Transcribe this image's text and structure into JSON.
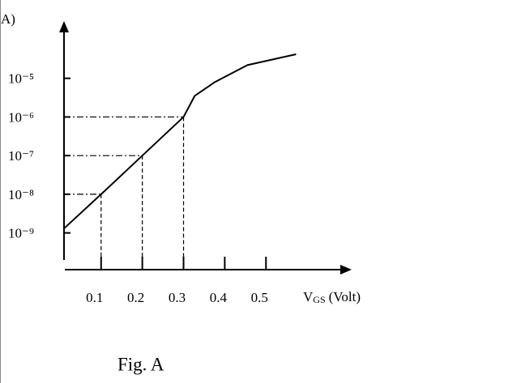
{
  "chart_data": {
    "type": "line",
    "y_label": "A)",
    "x_label": {
      "main": "V",
      "sub": "GS",
      "unit": "(Volt)"
    },
    "caption": "Fig. A",
    "log_y": true,
    "color": "#000000",
    "x": [
      0.01,
      0.1,
      0.2,
      0.3,
      0.327,
      0.376,
      0.455,
      0.573
    ],
    "values": [
      1.3e-09,
      1e-08,
      1e-07,
      1e-06,
      3.5e-06,
      8e-06,
      2.2e-05,
      4.2e-05
    ],
    "xlim": [
      0.01,
      0.7
    ],
    "ylim": [
      2e-10,
      0.00025
    ],
    "xticks": [
      0.1,
      0.2,
      0.3,
      0.4,
      0.5
    ],
    "yticks": [
      {
        "value": 1e-09,
        "label": "10⁻⁹"
      },
      {
        "value": 1e-08,
        "label": "10⁻⁸"
      },
      {
        "value": 1e-07,
        "label": "10⁻⁷"
      },
      {
        "value": 1e-06,
        "label": "10⁻⁶"
      },
      {
        "value": 1e-05,
        "label": "10⁻⁵"
      }
    ],
    "guides": [
      {
        "x": 0.1,
        "y": 1e-08
      },
      {
        "x": 0.2,
        "y": 1e-07
      },
      {
        "x": 0.3,
        "y": 1e-06
      }
    ]
  }
}
